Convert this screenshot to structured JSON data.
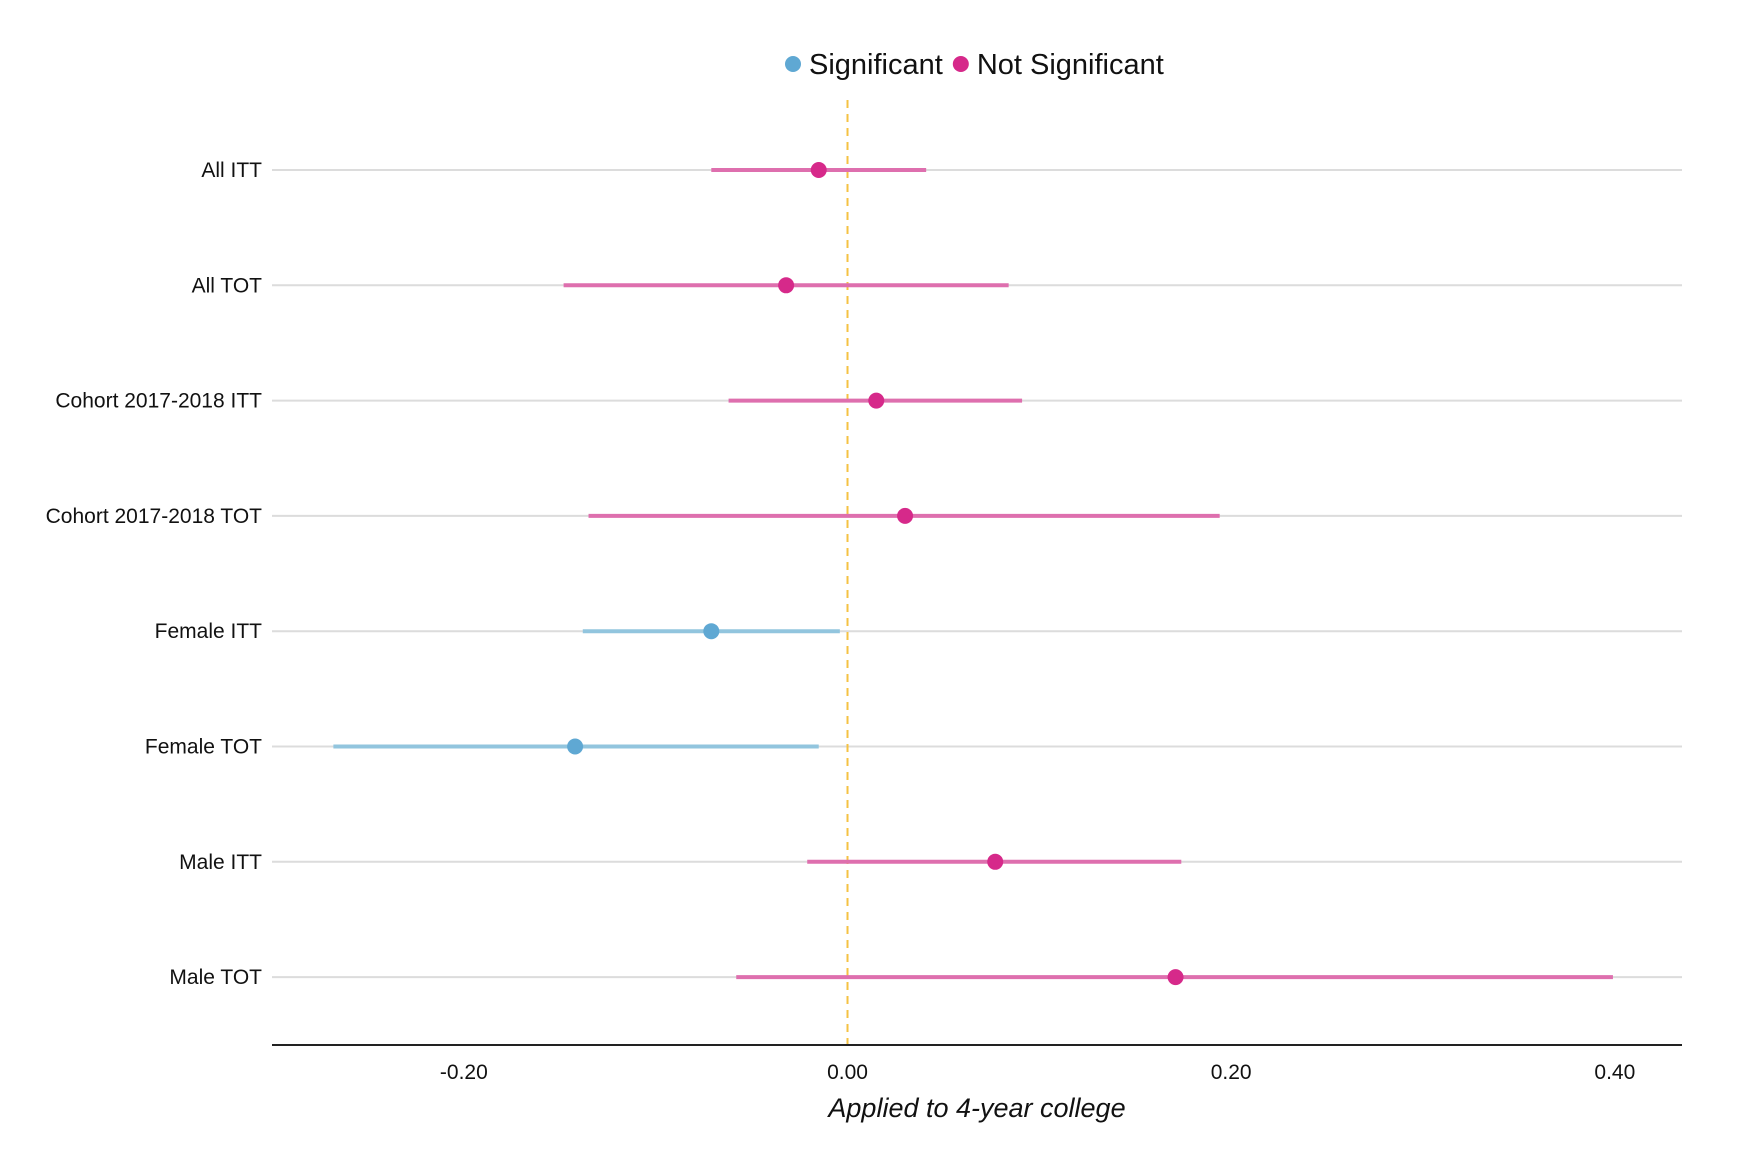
{
  "chart_data": {
    "type": "dot-whisker",
    "title": "",
    "xlabel": "Applied to 4-year college",
    "ylabel": "",
    "xlim": [
      -0.3,
      0.435
    ],
    "xticks": [
      -0.2,
      0.0,
      0.2,
      0.4
    ],
    "xtick_labels": [
      "-0.20",
      "0.00",
      "0.20",
      "0.40"
    ],
    "reference_line": 0.0,
    "grid": "horizontal",
    "legend_position": "top-center",
    "legend": [
      {
        "label": "Significant",
        "color": "#5fa8d3"
      },
      {
        "label": "Not Significant",
        "color": "#d6298a"
      }
    ],
    "colors": {
      "significant_point": "#5fa8d3",
      "significant_interval": "#92c5de",
      "not_significant_point": "#d6298a",
      "not_significant_interval": "#de6fae",
      "reference_line": "#f5c242",
      "grid": "#dcdcdc"
    },
    "rows": [
      {
        "label": "All ITT",
        "estimate": -0.015,
        "lower": -0.071,
        "upper": 0.041,
        "significant": false
      },
      {
        "label": "All TOT",
        "estimate": -0.032,
        "lower": -0.148,
        "upper": 0.084,
        "significant": false
      },
      {
        "label": "Cohort 2017-2018 ITT",
        "estimate": 0.015,
        "lower": -0.062,
        "upper": 0.091,
        "significant": false
      },
      {
        "label": "Cohort 2017-2018 TOT",
        "estimate": 0.03,
        "lower": -0.135,
        "upper": 0.194,
        "significant": false
      },
      {
        "label": "Female ITT",
        "estimate": -0.071,
        "lower": -0.138,
        "upper": -0.004,
        "significant": true
      },
      {
        "label": "Female TOT",
        "estimate": -0.142,
        "lower": -0.268,
        "upper": -0.015,
        "significant": true
      },
      {
        "label": "Male ITT",
        "estimate": 0.077,
        "lower": -0.021,
        "upper": 0.174,
        "significant": false
      },
      {
        "label": "Male TOT",
        "estimate": 0.171,
        "lower": -0.058,
        "upper": 0.399,
        "significant": false
      }
    ]
  }
}
